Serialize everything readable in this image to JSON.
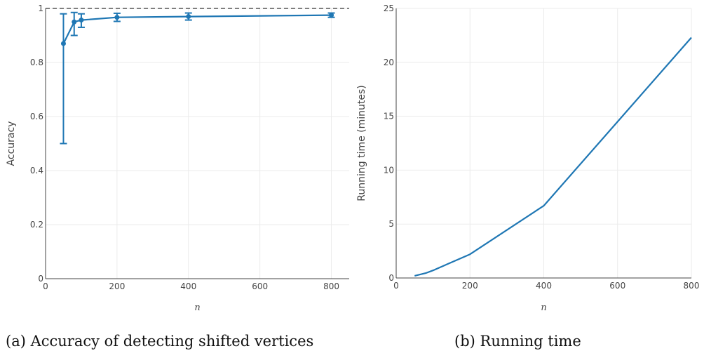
{
  "chart_data": [
    {
      "type": "line",
      "caption": "(a) Accuracy of detecting shifted vertices",
      "xlabel": "n",
      "ylabel": "Accuracy",
      "xlim": [
        0,
        850
      ],
      "ylim": [
        0,
        1
      ],
      "xticks": [
        0,
        200,
        400,
        600,
        800
      ],
      "yticks": [
        0,
        0.2,
        0.4,
        0.6,
        0.8,
        1
      ],
      "ytick_labels": [
        "0",
        "0.2",
        "0.4",
        "0.6",
        "0.8",
        "1"
      ],
      "grid": true,
      "reference_line": {
        "y": 1,
        "style": "dashed",
        "color": "#333333"
      },
      "series": [
        {
          "x": [
            50,
            80,
            100,
            200,
            400,
            800
          ],
          "y": [
            0.87,
            0.95,
            0.957,
            0.967,
            0.97,
            0.975
          ],
          "error_low": [
            0.5,
            0.9,
            0.93,
            0.952,
            0.957,
            0.967
          ],
          "error_high": [
            0.98,
            0.985,
            0.98,
            0.982,
            0.983,
            0.983
          ],
          "color": "#1f77b4"
        }
      ]
    },
    {
      "type": "line",
      "caption": "(b) Running time",
      "xlabel": "n",
      "ylabel": "Running time (minutes)",
      "xlim": [
        0,
        800
      ],
      "ylim": [
        0,
        25
      ],
      "xticks": [
        0,
        200,
        400,
        600,
        800
      ],
      "yticks": [
        0,
        5,
        10,
        15,
        20,
        25
      ],
      "ytick_labels": [
        "0",
        "5",
        "10",
        "15",
        "20",
        "25"
      ],
      "grid": true,
      "series": [
        {
          "x": [
            50,
            80,
            100,
            200,
            400,
            800
          ],
          "y": [
            0.2,
            0.45,
            0.7,
            2.2,
            6.7,
            22.3
          ],
          "color": "#1f77b4"
        }
      ]
    }
  ]
}
